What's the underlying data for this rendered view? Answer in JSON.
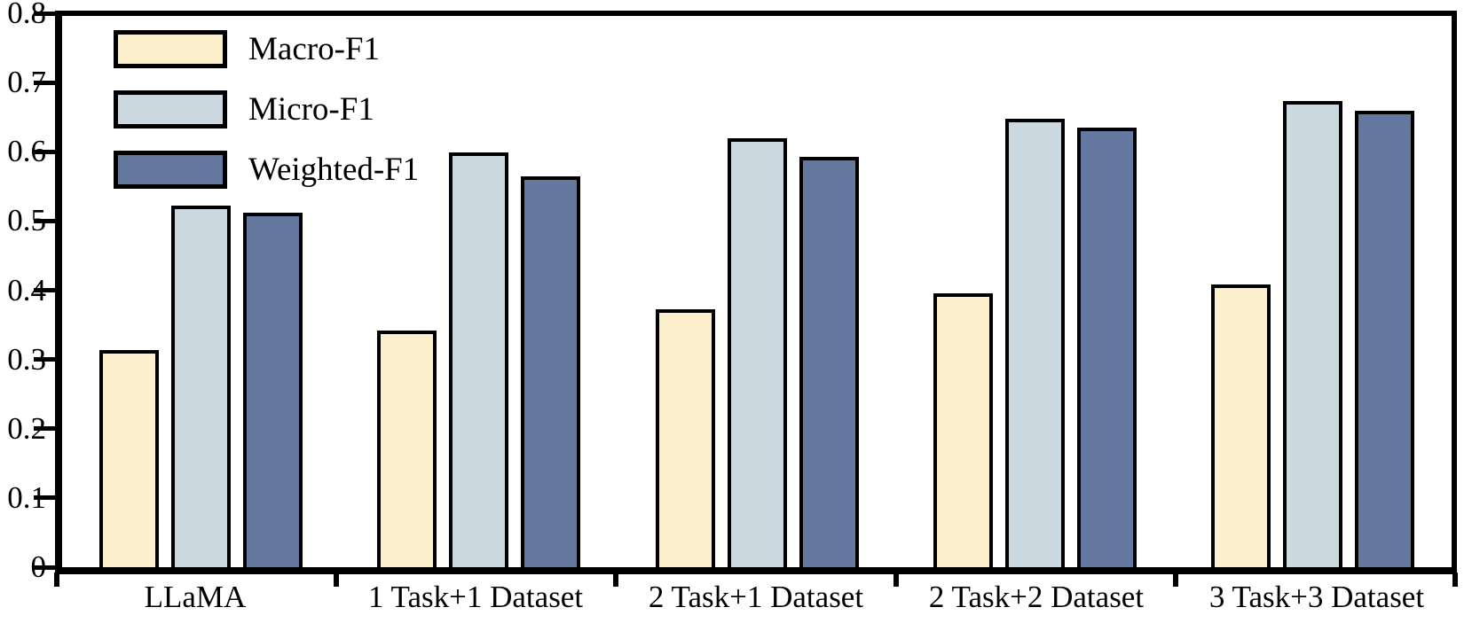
{
  "chart_data": {
    "type": "bar",
    "title": "",
    "xlabel": "",
    "ylabel": "",
    "categories": [
      "LLaMA",
      "1 Task+1 Dataset",
      "2 Task+1 Dataset",
      "2 Task+2 Dataset",
      "3 Task+3 Dataset"
    ],
    "series": [
      {
        "name": "Macro-F1",
        "color": "#FCF0CC",
        "values": [
          0.315,
          0.343,
          0.374,
          0.398,
          0.41
        ]
      },
      {
        "name": "Micro-F1",
        "color": "#CBD8E0",
        "values": [
          0.525,
          0.602,
          0.623,
          0.651,
          0.676
        ]
      },
      {
        "name": "Weighted-F1",
        "color": "#64779E",
        "values": [
          0.515,
          0.567,
          0.596,
          0.638,
          0.662
        ]
      }
    ],
    "ylim": [
      0,
      0.8
    ],
    "ytick_step": 0.1,
    "ytick_labels": [
      "0",
      "0.1",
      "0.2",
      "0.3",
      "0.4",
      "0.5",
      "0.6",
      "0.7",
      "0.8"
    ],
    "grid": false,
    "legend_position": "top-left",
    "bar_border_color": "#000000",
    "axis_color": "#000000",
    "background_color": "#FFFFFF"
  }
}
